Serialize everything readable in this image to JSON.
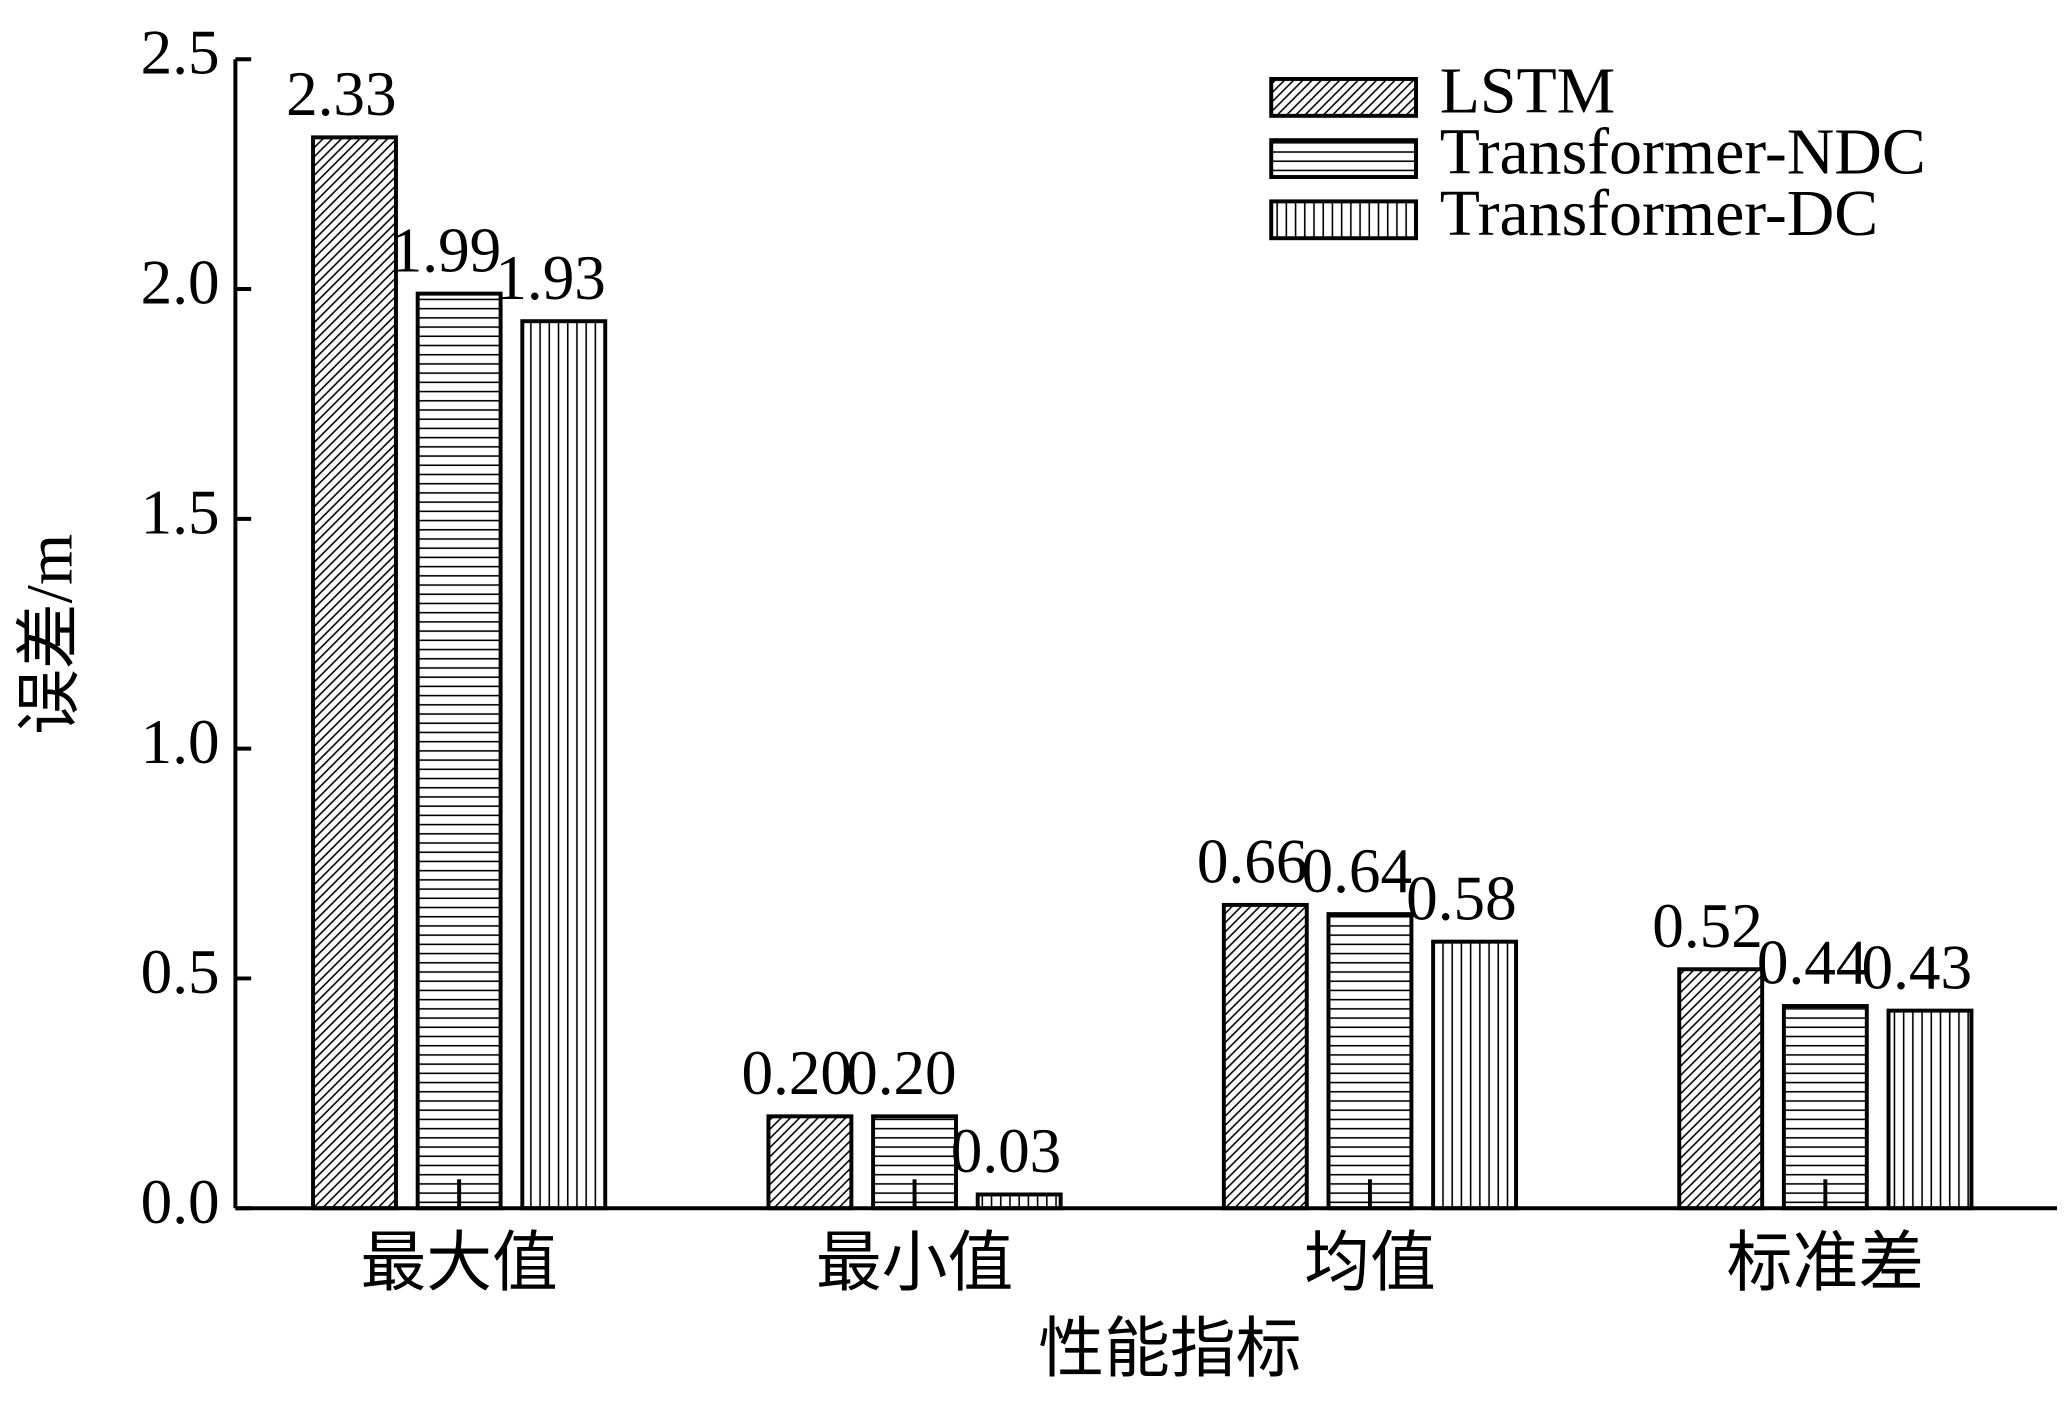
{
  "chart_data": {
    "type": "bar",
    "x_label": "性能指标",
    "y_label": "误差/m",
    "categories": [
      "最大值",
      "最小值",
      "均值",
      "标准差"
    ],
    "series": [
      {
        "name": "LSTM",
        "color": "#000000",
        "pattern": "diagonal",
        "values": [
          2.33,
          0.2,
          0.66,
          0.52
        ],
        "value_labels": [
          "2.33",
          "0.20",
          "0.66",
          "0.52"
        ]
      },
      {
        "name": "Transformer-NDC",
        "color": "#000000",
        "pattern": "horizontal",
        "values": [
          1.99,
          0.2,
          0.64,
          0.44
        ],
        "value_labels": [
          "1.99",
          "0.20",
          "0.64",
          "0.44"
        ]
      },
      {
        "name": "Transformer-DC",
        "color": "#000000",
        "pattern": "vertical",
        "values": [
          1.93,
          0.03,
          0.58,
          0.43
        ],
        "value_labels": [
          "1.93",
          "0.03",
          "0.58",
          "0.43"
        ]
      }
    ],
    "ylim": [
      0,
      2.5
    ],
    "yticks": [
      {
        "value": 0,
        "label": "0.0"
      },
      0.5,
      {
        "value": 1,
        "label": "1.0"
      },
      1.5,
      {
        "value": 2,
        "label": "2.0"
      },
      2.5
    ],
    "legend": "upper right"
  }
}
